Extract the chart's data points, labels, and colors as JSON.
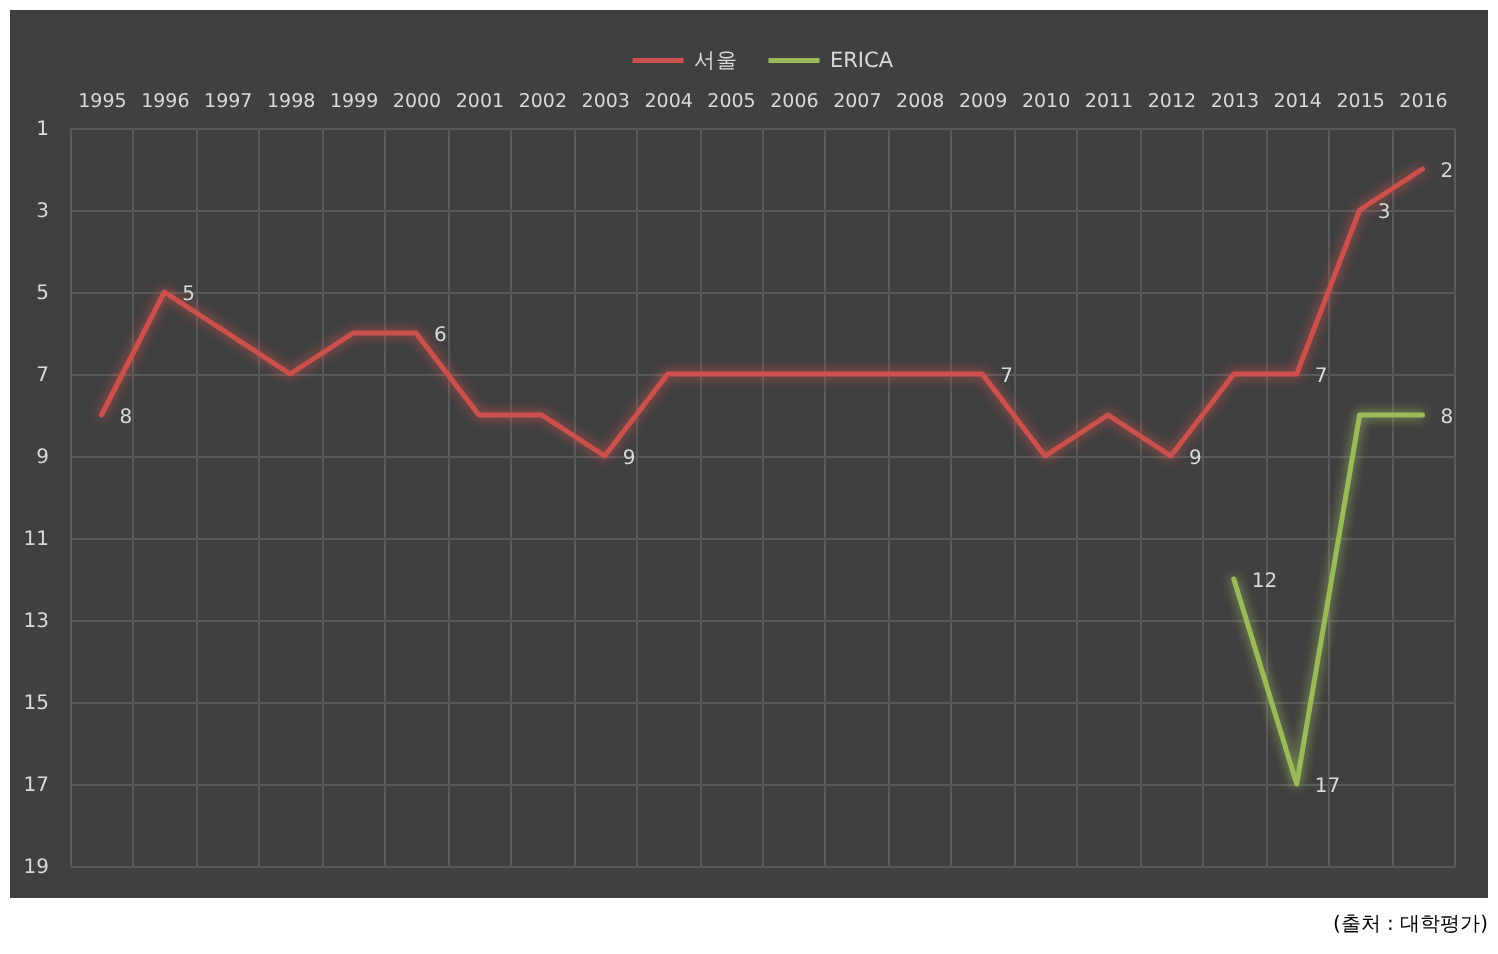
{
  "chart_data": {
    "type": "line",
    "categories": [
      "1995",
      "1996",
      "1997",
      "1998",
      "1999",
      "2000",
      "2001",
      "2002",
      "2003",
      "2004",
      "2005",
      "2006",
      "2007",
      "2008",
      "2009",
      "2010",
      "2011",
      "2012",
      "2013",
      "2014",
      "2015",
      "2016"
    ],
    "series": [
      {
        "name": "서울",
        "color": "#cc504c",
        "values": [
          8,
          5,
          6,
          7,
          6,
          6,
          8,
          8,
          9,
          7,
          7,
          7,
          7,
          7,
          7,
          9,
          8,
          9,
          7,
          7,
          3,
          2
        ],
        "value_labels": [
          "8",
          "5",
          null,
          null,
          null,
          "6",
          null,
          null,
          "9",
          null,
          null,
          null,
          null,
          null,
          "7",
          null,
          null,
          "9",
          null,
          "7",
          "3",
          "2"
        ]
      },
      {
        "name": "ERICA",
        "color": "#9bbb59",
        "values": [
          null,
          null,
          null,
          null,
          null,
          null,
          null,
          null,
          null,
          null,
          null,
          null,
          null,
          null,
          null,
          null,
          null,
          null,
          12,
          17,
          8,
          8
        ],
        "value_labels": [
          null,
          null,
          null,
          null,
          null,
          null,
          null,
          null,
          null,
          null,
          null,
          null,
          null,
          null,
          null,
          null,
          null,
          null,
          "12",
          "17",
          null,
          "8"
        ]
      }
    ],
    "ylim": [
      19,
      1
    ],
    "yticks": [
      1,
      3,
      5,
      7,
      9,
      11,
      13,
      15,
      17,
      19
    ],
    "grid": true,
    "legend": "top",
    "marker": "none",
    "line_style": "solid",
    "annotations": [
      "(출처 : 대학평가)"
    ]
  }
}
